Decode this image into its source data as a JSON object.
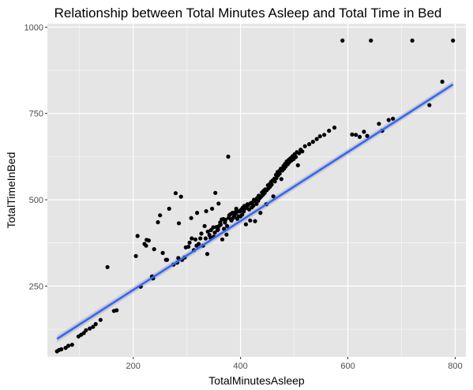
{
  "chart_data": {
    "type": "scatter",
    "title": "Relationship between Total Minutes Asleep and Total Time in Bed",
    "xlabel": "TotalMinutesAsleep",
    "ylabel": "TotalTimeInBed",
    "xlim": [
      40,
      820
    ],
    "ylim": [
      45,
      1010
    ],
    "x_ticks": [
      200,
      400,
      600,
      800
    ],
    "y_ticks": [
      250,
      500,
      750,
      1000
    ],
    "grid": true,
    "background": "#e5e5e5",
    "grid_color": "#ffffff",
    "point_color": "#000000",
    "trend_color": "#3366ff",
    "band_color": "#bdbdbd",
    "trendline": {
      "x": [
        58,
        796
      ],
      "y": [
        97,
        834
      ]
    },
    "confidence_band": {
      "x": [
        58,
        796
      ],
      "y_low": [
        87,
        825
      ],
      "y_high": [
        107,
        843
      ]
    },
    "points": [
      [
        58,
        61
      ],
      [
        62,
        65
      ],
      [
        66,
        67
      ],
      [
        74,
        71
      ],
      [
        79,
        77
      ],
      [
        86,
        80
      ],
      [
        98,
        104
      ],
      [
        103,
        109
      ],
      [
        108,
        114
      ],
      [
        112,
        122
      ],
      [
        119,
        127
      ],
      [
        125,
        132
      ],
      [
        130,
        140
      ],
      [
        139,
        152
      ],
      [
        152,
        305
      ],
      [
        164,
        178
      ],
      [
        169,
        180
      ],
      [
        205,
        337
      ],
      [
        208,
        395
      ],
      [
        214,
        248
      ],
      [
        221,
        372
      ],
      [
        224,
        367
      ],
      [
        225,
        384
      ],
      [
        229,
        382
      ],
      [
        235,
        278
      ],
      [
        237,
        272
      ],
      [
        239,
        357
      ],
      [
        246,
        435
      ],
      [
        250,
        455
      ],
      [
        255,
        346
      ],
      [
        261,
        326
      ],
      [
        263,
        326
      ],
      [
        267,
        474
      ],
      [
        275,
        312
      ],
      [
        279,
        519
      ],
      [
        282,
        318
      ],
      [
        284,
        331
      ],
      [
        285,
        432
      ],
      [
        289,
        509
      ],
      [
        291,
        326
      ],
      [
        296,
        333
      ],
      [
        298,
        362
      ],
      [
        303,
        364
      ],
      [
        305,
        376
      ],
      [
        308,
        447
      ],
      [
        309,
        388
      ],
      [
        313,
        354
      ],
      [
        316,
        385
      ],
      [
        318,
        367
      ],
      [
        319,
        462
      ],
      [
        322,
        372
      ],
      [
        325,
        388
      ],
      [
        327,
        402
      ],
      [
        330,
        367
      ],
      [
        333,
        424
      ],
      [
        335,
        388
      ],
      [
        336,
        467
      ],
      [
        338,
        343
      ],
      [
        339,
        408
      ],
      [
        342,
        398
      ],
      [
        344,
        390
      ],
      [
        345,
        412
      ],
      [
        347,
        474
      ],
      [
        349,
        420
      ],
      [
        350,
        393
      ],
      [
        352,
        405
      ],
      [
        353,
        520
      ],
      [
        355,
        421
      ],
      [
        357,
        412
      ],
      [
        358,
        414
      ],
      [
        359,
        489
      ],
      [
        360,
        424
      ],
      [
        362,
        434
      ],
      [
        363,
        428
      ],
      [
        365,
        443
      ],
      [
        366,
        385
      ],
      [
        368,
        444
      ],
      [
        369,
        416
      ],
      [
        371,
        434
      ],
      [
        372,
        442
      ],
      [
        374,
        399
      ],
      [
        375,
        424
      ],
      [
        377,
        625
      ],
      [
        378,
        448
      ],
      [
        379,
        455
      ],
      [
        381,
        458
      ],
      [
        382,
        443
      ],
      [
        383,
        440
      ],
      [
        385,
        462
      ],
      [
        386,
        447
      ],
      [
        388,
        452
      ],
      [
        390,
        464
      ],
      [
        391,
        461
      ],
      [
        392,
        474
      ],
      [
        394,
        445
      ],
      [
        396,
        452
      ],
      [
        397,
        466
      ],
      [
        399,
        467
      ],
      [
        400,
        452
      ],
      [
        401,
        471
      ],
      [
        403,
        457
      ],
      [
        404,
        477
      ],
      [
        406,
        466
      ],
      [
        407,
        482
      ],
      [
        409,
        475
      ],
      [
        410,
        429
      ],
      [
        411,
        479
      ],
      [
        413,
        487
      ],
      [
        414,
        484
      ],
      [
        416,
        472
      ],
      [
        418,
        440
      ],
      [
        419,
        490
      ],
      [
        421,
        478
      ],
      [
        422,
        492
      ],
      [
        424,
        483
      ],
      [
        425,
        500
      ],
      [
        427,
        438
      ],
      [
        428,
        496
      ],
      [
        430,
        488
      ],
      [
        431,
        505
      ],
      [
        433,
        497
      ],
      [
        434,
        512
      ],
      [
        436,
        505
      ],
      [
        437,
        462
      ],
      [
        439,
        510
      ],
      [
        440,
        521
      ],
      [
        442,
        515
      ],
      [
        443,
        526
      ],
      [
        445,
        520
      ],
      [
        446,
        530
      ],
      [
        448,
        487
      ],
      [
        449,
        528
      ],
      [
        451,
        542
      ],
      [
        452,
        533
      ],
      [
        454,
        545
      ],
      [
        455,
        538
      ],
      [
        457,
        552
      ],
      [
        458,
        544
      ],
      [
        460,
        556
      ],
      [
        461,
        510
      ],
      [
        463,
        561
      ],
      [
        464,
        553
      ],
      [
        466,
        572
      ],
      [
        467,
        563
      ],
      [
        469,
        580
      ],
      [
        470,
        571
      ],
      [
        472,
        583
      ],
      [
        473,
        576
      ],
      [
        475,
        590
      ],
      [
        476,
        560
      ],
      [
        478,
        585
      ],
      [
        480,
        598
      ],
      [
        481,
        590
      ],
      [
        483,
        604
      ],
      [
        484,
        596
      ],
      [
        486,
        611
      ],
      [
        488,
        603
      ],
      [
        490,
        616
      ],
      [
        491,
        609
      ],
      [
        493,
        620
      ],
      [
        495,
        614
      ],
      [
        497,
        626
      ],
      [
        499,
        618
      ],
      [
        501,
        632
      ],
      [
        503,
        624
      ],
      [
        505,
        638
      ],
      [
        507,
        600
      ],
      [
        509,
        635
      ],
      [
        512,
        645
      ],
      [
        515,
        640
      ],
      [
        520,
        655
      ],
      [
        528,
        661
      ],
      [
        535,
        668
      ],
      [
        542,
        676
      ],
      [
        548,
        684
      ],
      [
        556,
        688
      ],
      [
        565,
        700
      ],
      [
        575,
        709
      ],
      [
        590,
        961
      ],
      [
        608,
        689
      ],
      [
        615,
        688
      ],
      [
        622,
        682
      ],
      [
        630,
        697
      ],
      [
        636,
        685
      ],
      [
        643,
        961
      ],
      [
        658,
        720
      ],
      [
        664,
        700
      ],
      [
        676,
        731
      ],
      [
        684,
        735
      ],
      [
        720,
        961
      ],
      [
        752,
        774
      ],
      [
        776,
        842
      ],
      [
        796,
        961
      ]
    ]
  }
}
